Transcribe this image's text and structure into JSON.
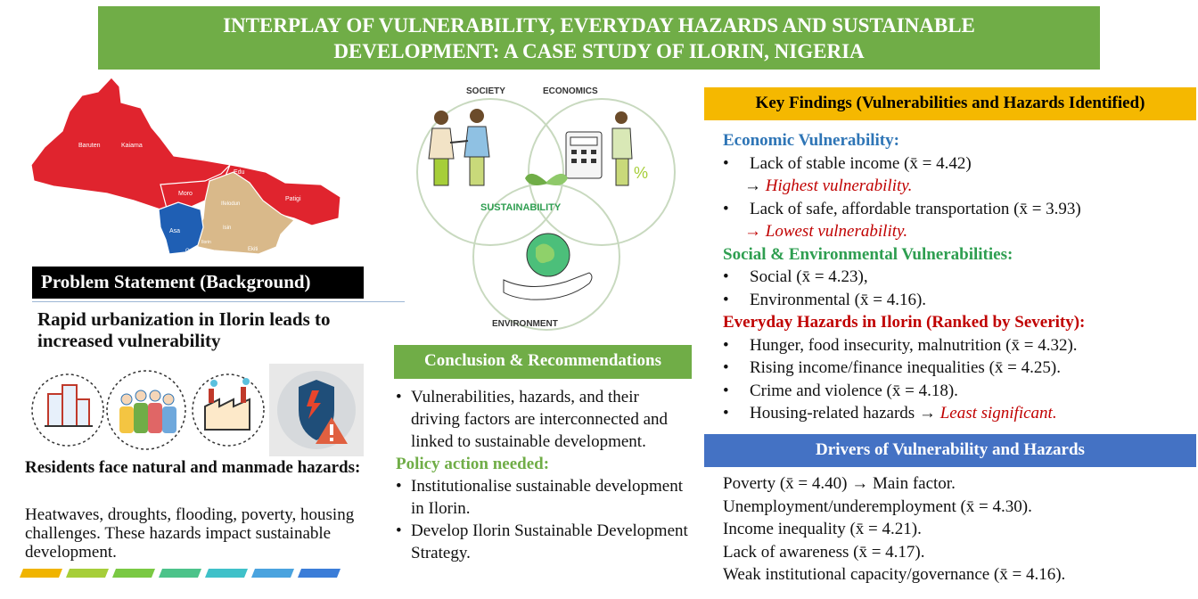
{
  "title": {
    "line1": "INTERPLAY OF VULNERABILITY, EVERYDAY HAZARDS AND SUSTAINABLE",
    "line2": "DEVELOPMENT: A CASE STUDY OF ILORIN, NIGERIA"
  },
  "map": {
    "labels": [
      "Baruten",
      "Kaiama",
      "Moro",
      "Edu",
      "Patigi",
      "Ifelodun",
      "Asa",
      "Isin",
      "Oyun",
      "Ekiti",
      "Ilorin"
    ],
    "colors": {
      "north": "#e0242e",
      "south": "#d9b98a",
      "asa": "#1f5fb4"
    }
  },
  "problem": {
    "header": "Problem Statement (Background)",
    "lead": "Rapid urbanization in Ilorin leads to increased vulnerability",
    "residents": "Residents face natural and manmade hazards:",
    "hazards": "Heatwaves, droughts, flooding, poverty, housing challenges. These hazards impact sustainable development.",
    "icons": [
      "city-buildings-icon",
      "crowd-people-icon",
      "factory-icon",
      "hazard-shield-icon"
    ]
  },
  "venn": {
    "society": "SOCIETY",
    "economics": "ECONOMICS",
    "sustainability": "SUSTAINABILITY",
    "environment": "ENVIRONMENT"
  },
  "conclusion": {
    "header": "Conclusion & Recommendations",
    "bullet1": "Vulnerabilities, hazards, and their driving factors are interconnected and linked to sustainable development.",
    "policy": "Policy action needed:",
    "bullet2": "Institutionalise sustainable development in Ilorin.",
    "bullet3": "Develop Ilorin Sustainable Development Strategy."
  },
  "findings": {
    "header": "Key Findings (Vulnerabilities and Hazards Identified)",
    "econ_title": "Economic Vulnerability:",
    "econ1": "Lack of stable income (x̄ = 4.42)",
    "econ1_note": "Highest vulnerability.",
    "econ2": "Lack of safe, affordable transportation (x̄ = 3.93)",
    "econ2_note": "Lowest vulnerability.",
    "social_title": "Social & Environmental Vulnerabilities:",
    "social1": "Social (x̄ = 4.23),",
    "social2": "Environmental (x̄ = 4.16).",
    "haz_title": "Everyday Hazards in Ilorin (Ranked by Severity):",
    "haz1": "Hunger, food insecurity, malnutrition (x̄ = 4.32).",
    "haz2": "Rising income/finance inequalities (x̄ =  4.25).",
    "haz3": "Crime and violence (x̄ = 4.18).",
    "haz4": "Housing-related hazards →",
    "haz4_note": "Least significant."
  },
  "drivers": {
    "header": "Drivers of Vulnerability and Hazards",
    "d1": "Poverty (x̄ = 4.40) → Main factor.",
    "d2": "Unemployment/underemployment (x̄ = 4.30).",
    "d3": "Income inequality (x̄ = 4.21).",
    "d4": "Lack of awareness (x̄ = 4.17).",
    "d5": "Weak institutional capacity/governance (x̄ = 4.16)."
  },
  "colors": {
    "green": "#70ad47",
    "gold": "#f5b800",
    "blue": "#4472c4",
    "red": "#c00000",
    "econ_blue": "#2e75b6",
    "social_green": "#2e9e50"
  }
}
